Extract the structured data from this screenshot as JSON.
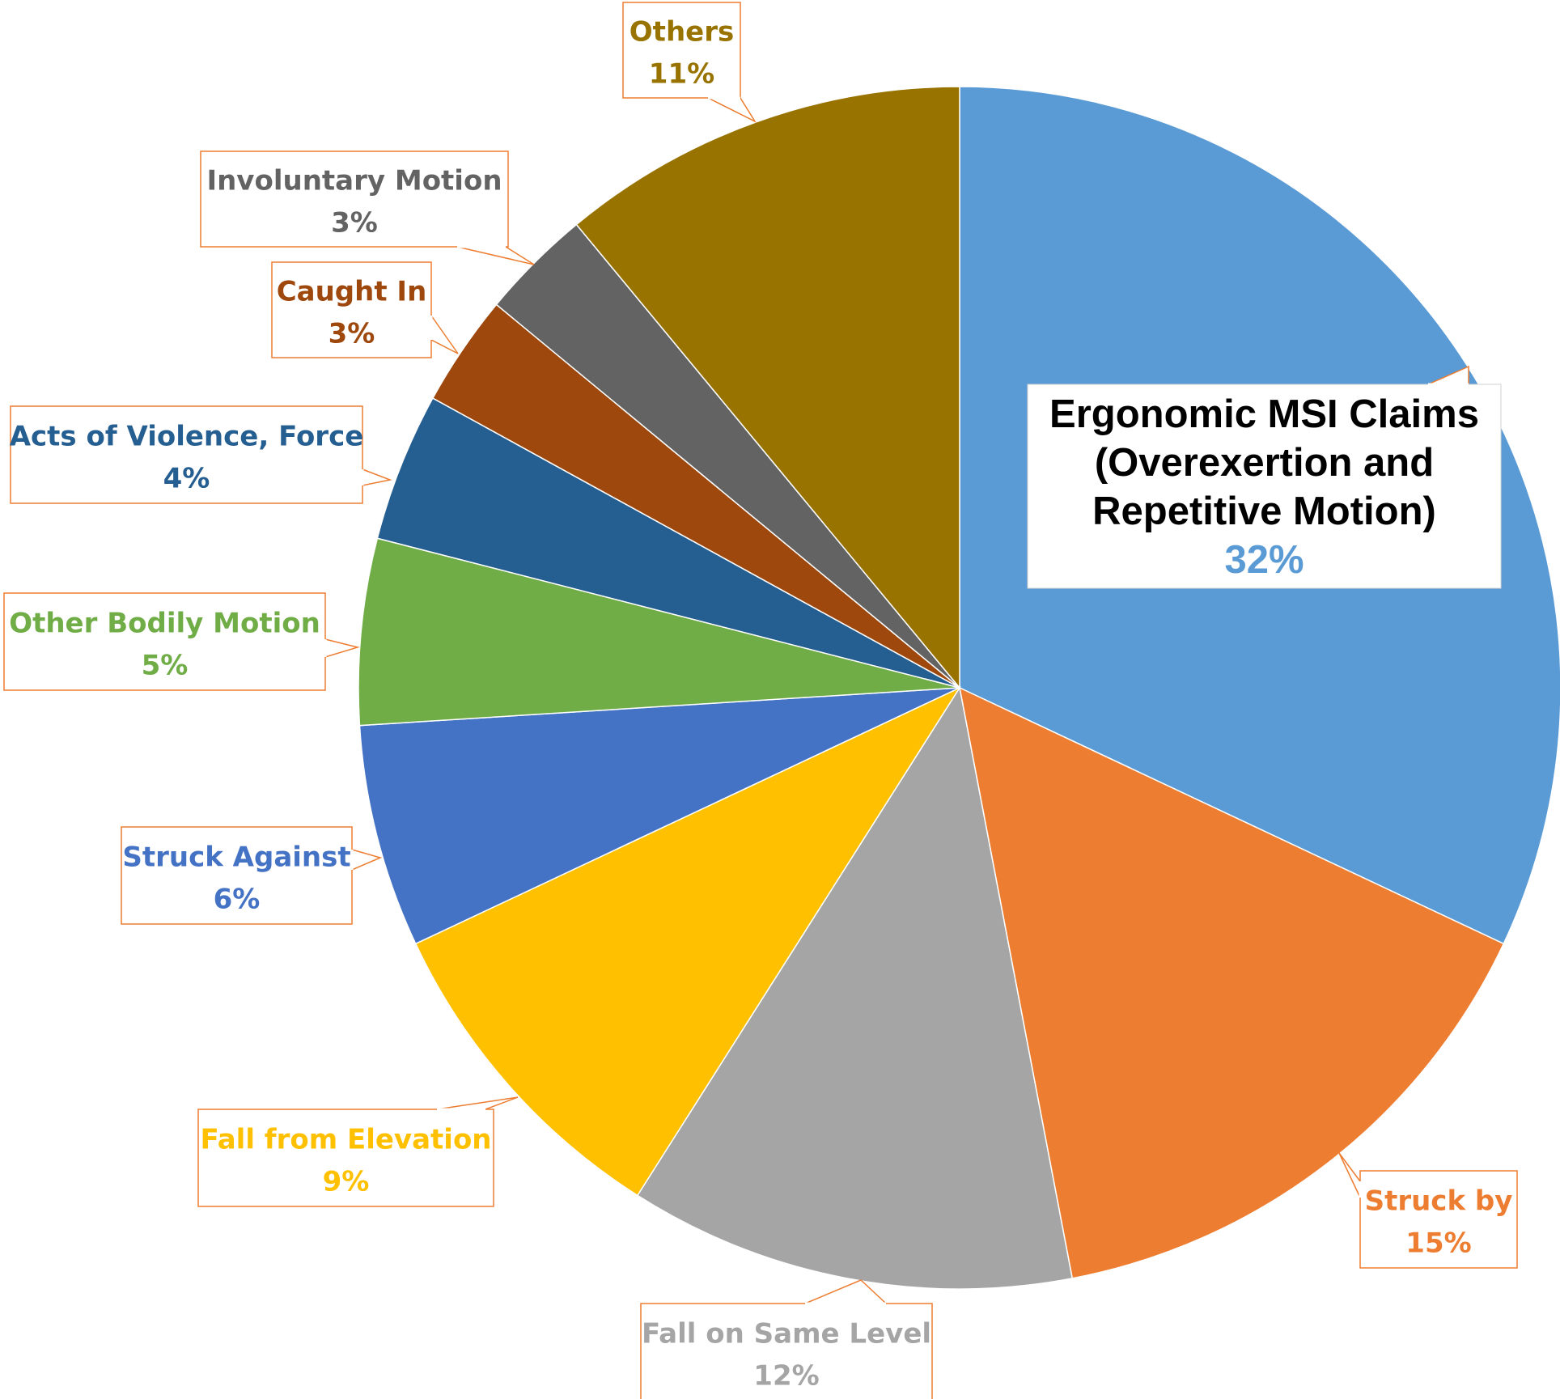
{
  "chart_data": {
    "type": "pie",
    "title": "",
    "start_angle_deg": 0,
    "direction": "clockwise",
    "legend": "none",
    "slices": [
      {
        "name": "Ergonomic MSI Claims\n(Overexertion and\nRepetitive Motion)",
        "value": 32,
        "label": "32%",
        "color": "#5B9BD5"
      },
      {
        "name": "Struck by",
        "value": 15,
        "label": "15%",
        "color": "#ED7D31"
      },
      {
        "name": "Fall on Same Level",
        "value": 12,
        "label": "12%",
        "color": "#A5A5A5"
      },
      {
        "name": "Fall from Elevation",
        "value": 9,
        "label": "9%",
        "color": "#FFC000"
      },
      {
        "name": "Struck Against",
        "value": 6,
        "label": "6%",
        "color": "#4472C4"
      },
      {
        "name": "Other Bodily Motion",
        "value": 5,
        "label": "5%",
        "color": "#70AD47"
      },
      {
        "name": "Acts of Violence, Force",
        "value": 4,
        "label": "4%",
        "color": "#255E91"
      },
      {
        "name": "Caught In",
        "value": 3,
        "label": "3%",
        "color": "#9E480E"
      },
      {
        "name": "Involuntary Motion",
        "value": 3,
        "label": "3%",
        "color": "#636363"
      },
      {
        "name": "Others",
        "value": 11,
        "label": "11%",
        "color": "#997300"
      }
    ],
    "label_style": {
      "callout_border_color": "#ED7D31",
      "callout_fill": "#FFFFFF",
      "name_colors": [
        "#000000",
        "#ED7D31",
        "#A5A5A5",
        "#FFC000",
        "#4472C4",
        "#70AD47",
        "#255E91",
        "#9E480E",
        "#636363",
        "#997300"
      ],
      "pct_colors": [
        "#5B9BD5",
        "#ED7D31",
        "#A5A5A5",
        "#FFC000",
        "#4472C4",
        "#70AD47",
        "#255E91",
        "#9E480E",
        "#636363",
        "#997300"
      ]
    }
  }
}
